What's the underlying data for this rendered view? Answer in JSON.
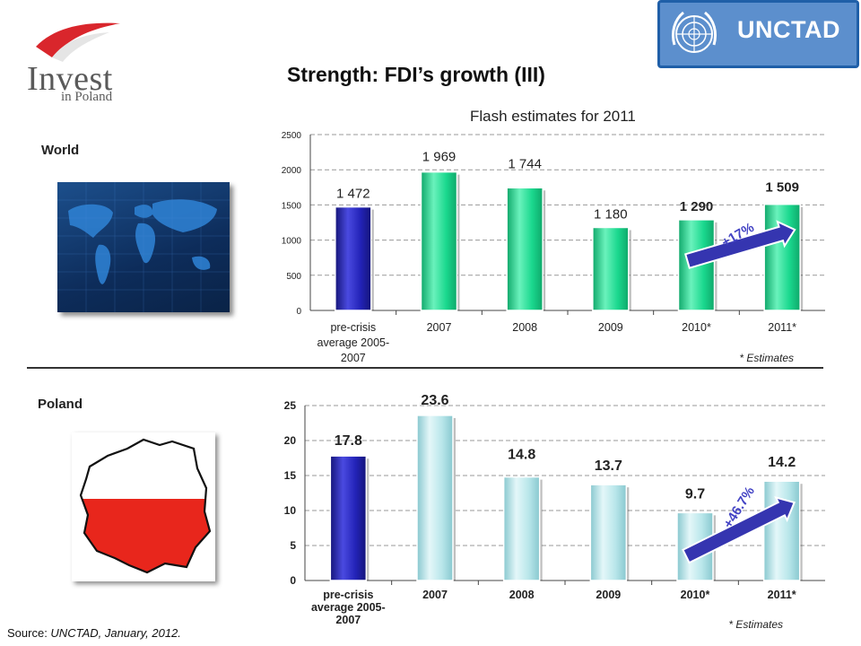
{
  "header": {
    "logo_main": "Invest",
    "logo_sub": "in Poland",
    "un_logo_text": "UNCTAD",
    "title": "Strength: FDI’s growth (III)"
  },
  "labels": {
    "world": "World",
    "poland": "Poland"
  },
  "footer": {
    "source_prefix": "Source: ",
    "source_text": "UNCTAD, January, 2012."
  },
  "colors": {
    "bar_dark_blue": "#2323b8",
    "bar_green": "#1ad88e",
    "bar_light_cyan": "#b8e6ea",
    "arrow": "#3535b0",
    "growth_text": "#4343c4"
  },
  "chart_data": [
    {
      "type": "bar",
      "title": "Flash estimates for 2011",
      "categories": [
        "pre-crisis average 2005-2007",
        "2007",
        "2008",
        "2009",
        "2010*",
        "2011*"
      ],
      "category_lines": [
        [
          "pre-crisis",
          "average 2005-",
          "2007"
        ],
        [
          "2007"
        ],
        [
          "2008"
        ],
        [
          "2009"
        ],
        [
          "2010*"
        ],
        [
          "2011*"
        ]
      ],
      "values": [
        1472,
        1969,
        1744,
        1180,
        1290,
        1509
      ],
      "data_labels": [
        "1 472",
        "1 969",
        "1 744",
        "1 180",
        "1 290",
        "1 509"
      ],
      "bold_labels": [
        false,
        false,
        false,
        false,
        true,
        true
      ],
      "ylim": [
        0,
        2500
      ],
      "yticks": [
        0,
        500,
        1000,
        1500,
        2000,
        2500
      ],
      "grid": true,
      "annotation": "+17%",
      "note": "* Estimates"
    },
    {
      "type": "bar",
      "categories": [
        "pre-crisis average 2005-2007",
        "2007",
        "2008",
        "2009",
        "2010*",
        "2011*"
      ],
      "category_lines": [
        [
          "pre-crisis",
          "average 2005-",
          "2007"
        ],
        [
          "2007"
        ],
        [
          "2008"
        ],
        [
          "2009"
        ],
        [
          "2010*"
        ],
        [
          "2011*"
        ]
      ],
      "values": [
        17.8,
        23.6,
        14.8,
        13.7,
        9.7,
        14.2
      ],
      "data_labels": [
        "17.8",
        "23.6",
        "14.8",
        "13.7",
        "9.7",
        "14.2"
      ],
      "bold_labels": [
        false,
        false,
        false,
        false,
        true,
        true
      ],
      "ylim": [
        0,
        25
      ],
      "yticks": [
        0,
        5,
        10,
        15,
        20,
        25
      ],
      "grid": true,
      "annotation": "+46.7%",
      "note": "* Estimates"
    }
  ]
}
